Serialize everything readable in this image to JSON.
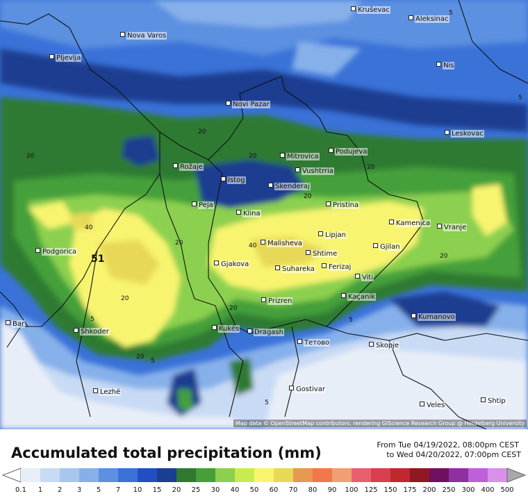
{
  "map": {
    "attribution": "Map data © OpenStreetMap contributors, rendering GIScience Research Group @ Heidelberg University",
    "max_label": "51",
    "cities": [
      {
        "name": "Kruševac"
      },
      {
        "name": "Aleksinac"
      },
      {
        "name": "Nova Varos"
      },
      {
        "name": "Pljevlja"
      },
      {
        "name": "Nis"
      },
      {
        "name": "Novi Pazar"
      },
      {
        "name": "Leskovac"
      },
      {
        "name": "Rožaje"
      },
      {
        "name": "Mitrovica"
      },
      {
        "name": "Podujeva"
      },
      {
        "name": "Vushtrria"
      },
      {
        "name": "Istog"
      },
      {
        "name": "Skenderaj"
      },
      {
        "name": "Peja"
      },
      {
        "name": "Klina"
      },
      {
        "name": "Pristina"
      },
      {
        "name": "Podgorica"
      },
      {
        "name": "Kamenica"
      },
      {
        "name": "Vranje"
      },
      {
        "name": "Lipjan"
      },
      {
        "name": "Malisheva"
      },
      {
        "name": "Gjilan"
      },
      {
        "name": "Shtime"
      },
      {
        "name": "Gjakova"
      },
      {
        "name": "Ferizaj"
      },
      {
        "name": "Suhareka"
      },
      {
        "name": "Viti"
      },
      {
        "name": "Prizren"
      },
      {
        "name": "Kaçanik"
      },
      {
        "name": "Kumanovo"
      },
      {
        "name": "Bar"
      },
      {
        "name": "Shkoder"
      },
      {
        "name": "Kukës"
      },
      {
        "name": "Dragash"
      },
      {
        "name": "Тетово"
      },
      {
        "name": "Skopje"
      },
      {
        "name": "Gostivar"
      },
      {
        "name": "Lezhë"
      },
      {
        "name": "Veles"
      },
      {
        "name": "Shtip"
      }
    ],
    "isolines": [
      "5",
      "5",
      "20",
      "20",
      "20",
      "20",
      "20",
      "20",
      "40",
      "40",
      "20",
      "20",
      "20",
      "5",
      "5",
      "20",
      "5",
      "5"
    ]
  },
  "legend": {
    "title": "Accumulated total precipitation (mm)",
    "period_from": "From Tue 04/19/2022, 08:00pm CEST",
    "period_to": "to Wed 04/20/2022, 07:00pm CEST",
    "ticks": [
      "0.1",
      "1",
      "2",
      "3",
      "5",
      "7",
      "10",
      "15",
      "20",
      "25",
      "30",
      "40",
      "50",
      "60",
      "70",
      "80",
      "90",
      "100",
      "125",
      "150",
      "175",
      "200",
      "250",
      "300",
      "400",
      "500"
    ],
    "colors": [
      "#e8eef8",
      "#c8daf4",
      "#a8c6f0",
      "#86b0ea",
      "#5c90e0",
      "#3a72d8",
      "#2050c0",
      "#1a3e90",
      "#2f7a30",
      "#45a03a",
      "#8cd050",
      "#c8ec50",
      "#f8f470",
      "#e8d858",
      "#e89850",
      "#f0784a",
      "#f0a070",
      "#e86070",
      "#d84050",
      "#c02830",
      "#901820",
      "#701060",
      "#9030a0",
      "#c060d8",
      "#d890e8",
      "#e8c8f0",
      "#f0e8f8",
      "#d0d0d0",
      "#a8a8a8"
    ],
    "range_colors": [
      "#e8eef8",
      "#c8daf4",
      "#a8c6f0",
      "#86b0ea",
      "#5c90e0",
      "#3a72d8",
      "#2050c0",
      "#1a3e90",
      "#2f7a30",
      "#45a03a",
      "#8cd050",
      "#c8ec50",
      "#f8f470",
      "#e8d858",
      "#e89850",
      "#f0784a",
      "#f0a070",
      "#e86070",
      "#d84050",
      "#c02830",
      "#901820",
      "#701060",
      "#9030a0",
      "#c060d8",
      "#d890e8",
      "#e8c8f0",
      "#f0e8f8"
    ]
  }
}
